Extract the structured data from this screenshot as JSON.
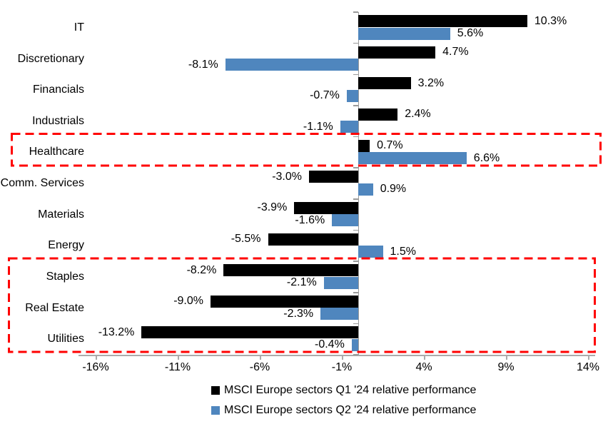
{
  "chart_data": {
    "type": "bar",
    "orientation": "horizontal",
    "title": "",
    "categories": [
      "IT",
      "Discretionary",
      "Financials",
      "Industrials",
      "Healthcare",
      "Comm. Services",
      "Materials",
      "Energy",
      "Staples",
      "Real Estate",
      "Utilities"
    ],
    "series": [
      {
        "name": "MSCI Europe sectors Q1 '24 relative performance",
        "color": "#000000",
        "values": [
          10.3,
          4.7,
          3.2,
          2.4,
          0.7,
          -3.0,
          -3.9,
          -5.5,
          -8.2,
          -9.0,
          -13.2
        ],
        "labels": [
          "10.3%",
          "4.7%",
          "3.2%",
          "2.4%",
          "0.7%",
          "-3.0%",
          "-3.9%",
          "-5.5%",
          "-8.2%",
          "-9.0%",
          "-13.2%"
        ]
      },
      {
        "name": "MSCI Europe sectors Q2 '24 relative performance",
        "color": "#4F86BE",
        "values": [
          5.6,
          -8.1,
          -0.7,
          -1.1,
          6.6,
          0.9,
          -1.6,
          1.5,
          -2.1,
          -2.3,
          -0.4
        ],
        "labels": [
          "5.6%",
          "-8.1%",
          "-0.7%",
          "-1.1%",
          "6.6%",
          "0.9%",
          "-1.6%",
          "1.5%",
          "-2.1%",
          "-2.3%",
          "-0.4%"
        ]
      }
    ],
    "x_tick_values": [
      -16,
      -11,
      -6,
      -1,
      4,
      9,
      14
    ],
    "x_tick_labels": [
      "-16%",
      "-11%",
      "-6%",
      "-1%",
      "4%",
      "9%",
      "14%"
    ],
    "xlim": [
      -17,
      14.5
    ],
    "value_unit": "%",
    "gridlines": false,
    "legend_position": "bottom",
    "highlight_color": "#FF0000",
    "highlights": [
      {
        "categories": [
          "Healthcare"
        ]
      },
      {
        "categories": [
          "Staples",
          "Real Estate",
          "Utilities"
        ]
      }
    ]
  }
}
